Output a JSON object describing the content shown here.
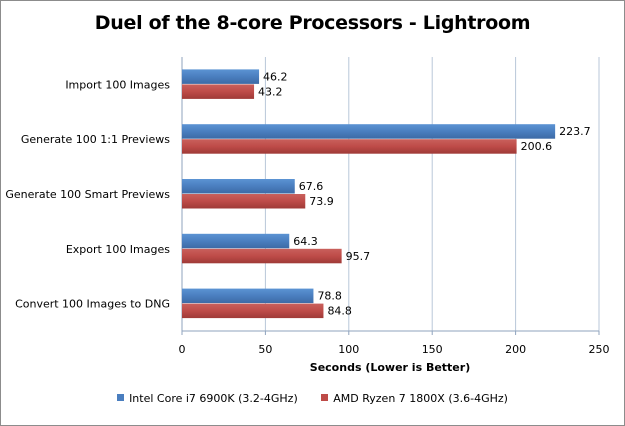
{
  "chart_data": {
    "type": "bar",
    "orientation": "horizontal",
    "title": "Duel of the 8-core Processors - Lightroom",
    "xlabel": "Seconds (Lower is Better)",
    "ylabel": "",
    "xlim": [
      0,
      250
    ],
    "xticks": [
      0,
      50,
      100,
      150,
      200,
      250
    ],
    "grid": true,
    "legend_position": "bottom",
    "categories": [
      "Import 100 Images",
      "Generate 100 1:1 Previews",
      "Generate 100 Smart Previews",
      "Export 100 Images",
      "Convert 100 Images to DNG"
    ],
    "series": [
      {
        "name": "Intel Core i7 6900K (3.2-4GHz)",
        "color": "#4a7ebf",
        "values": [
          46.2,
          223.7,
          67.6,
          64.3,
          78.8
        ],
        "labels": [
          "46.2",
          "223.7",
          "67.6",
          "64.3",
          "78.8"
        ]
      },
      {
        "name": "AMD Ryzen 7 1800X (3.6-4GHz)",
        "color": "#be4b48",
        "values": [
          43.2,
          200.6,
          73.9,
          95.7,
          84.8
        ],
        "labels": [
          "43.2",
          "200.6",
          "73.9",
          "95.7",
          "84.8"
        ]
      }
    ]
  }
}
